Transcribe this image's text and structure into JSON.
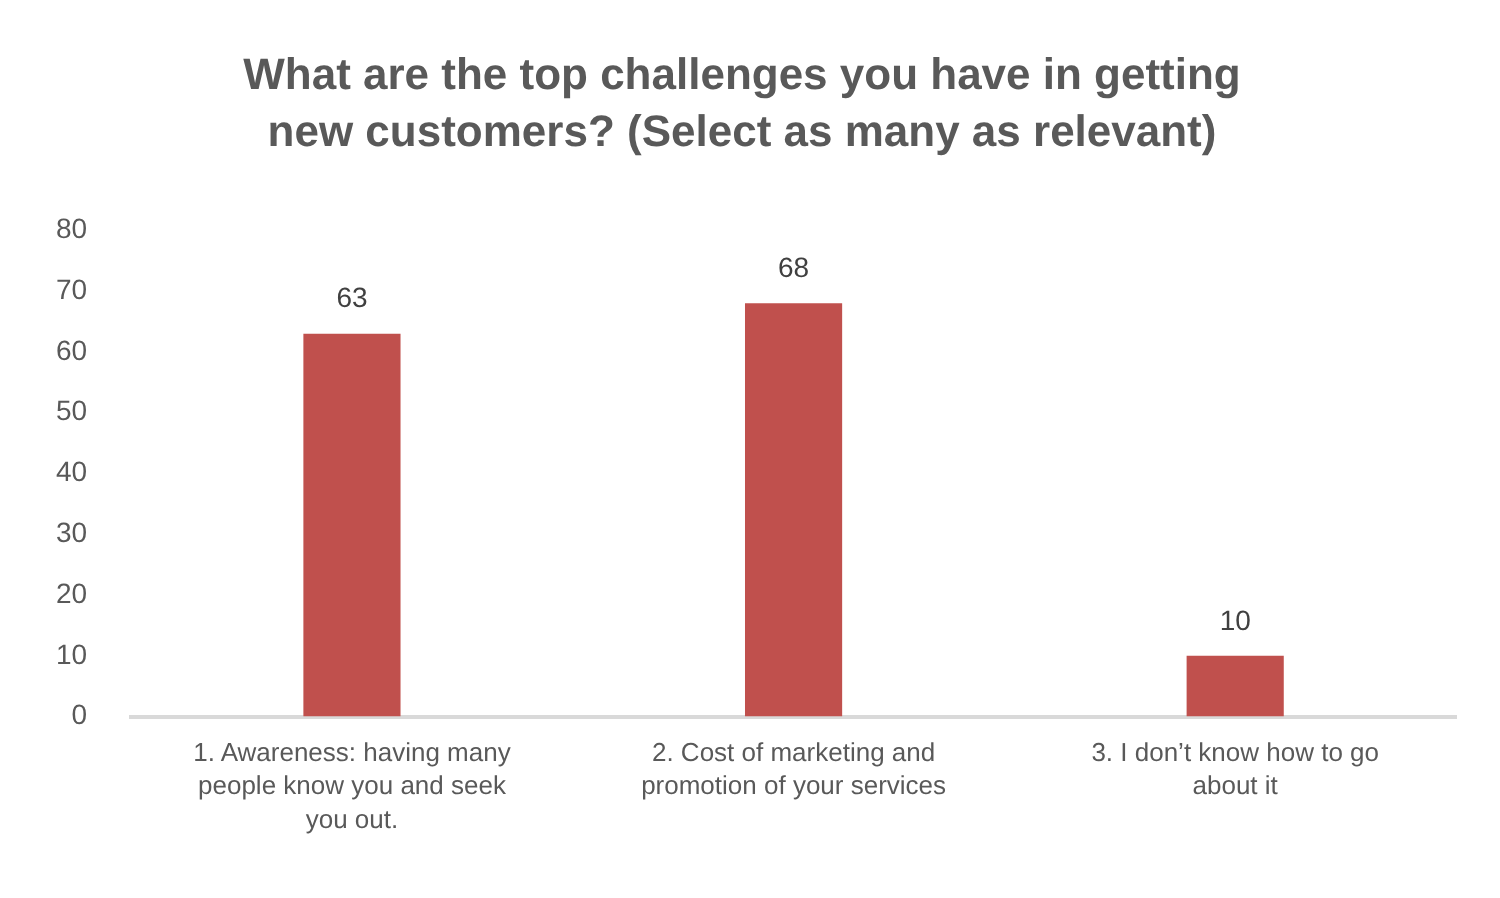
{
  "chart_data": {
    "type": "bar",
    "title": "What are the top challenges you have in getting new customers? (Select as many as relevant)",
    "categories": [
      "1. Awareness: having many people know you and seek you out.",
      "2. Cost of marketing and promotion of your services",
      "3. I don’t know how to go about it"
    ],
    "values": [
      63,
      68,
      10
    ],
    "color": "#c0504d",
    "ylim": [
      0,
      80
    ],
    "yticks": [
      0,
      10,
      20,
      30,
      40,
      50,
      60,
      70,
      80
    ],
    "grid": false,
    "data_labels": true
  }
}
